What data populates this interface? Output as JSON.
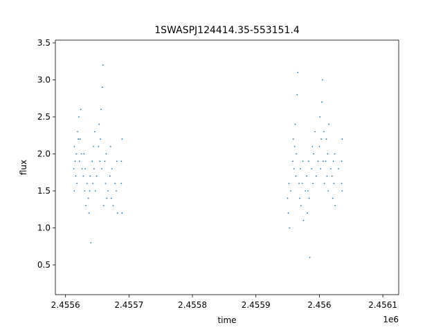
{
  "chart_data": {
    "type": "scatter",
    "title": "1SWASPJ124414.35-553151.4",
    "x_label": "time",
    "y_label": "flux",
    "x_offset_label": "1e6",
    "color": "#1f77b4",
    "xlim": [
      2.455584,
      2.456125
    ],
    "ylim": [
      0.098,
      3.537
    ],
    "xticks": [
      2.4556,
      2.4557,
      2.4558,
      2.4559,
      2.456,
      2.4561
    ],
    "yticks": [
      0.5,
      {
        "value": 1,
        "label": "1.0"
      },
      1.5,
      {
        "value": 2,
        "label": "2.0"
      },
      2.5,
      {
        "value": 3,
        "label": "3.0"
      },
      3.5
    ],
    "x": [
      2.455613,
      2.455614,
      2.455614,
      2.455615,
      2.455616,
      2.455617,
      2.455618,
      2.455619,
      2.45562,
      2.455621,
      2.455622,
      2.455623,
      2.455624,
      2.455625,
      2.455626,
      2.455628,
      2.455629,
      2.45563,
      2.455631,
      2.455632,
      2.455634,
      2.455636,
      2.455637,
      2.455638,
      2.455639,
      2.45564,
      2.455642,
      2.455643,
      2.455644,
      2.455645,
      2.455646,
      2.455647,
      2.455649,
      2.455652,
      2.455653,
      2.455654,
      2.455655,
      2.455656,
      2.455657,
      2.455658,
      2.455659,
      2.45566,
      2.455662,
      2.455663,
      2.455664,
      2.455665,
      2.455667,
      2.45567,
      2.455671,
      2.455672,
      2.455673,
      2.455675,
      2.455678,
      2.45568,
      2.455681,
      2.455682,
      2.455688,
      2.455688,
      2.455689,
      2.455689,
      2.45595,
      2.455951,
      2.455952,
      2.455953,
      2.455955,
      2.455958,
      2.455959,
      2.45596,
      2.455961,
      2.455962,
      2.455963,
      2.455964,
      2.455965,
      2.455966,
      2.455968,
      2.455969,
      2.45597,
      2.455971,
      2.455973,
      2.455974,
      2.455975,
      2.455978,
      2.45598,
      2.455981,
      2.455982,
      2.455983,
      2.455984,
      2.455985,
      2.455988,
      2.455989,
      2.45599,
      2.455991,
      2.455993,
      2.455995,
      2.455998,
      2.456,
      2.456001,
      2.456002,
      2.456003,
      2.456004,
      2.456005,
      2.456006,
      2.456007,
      2.456008,
      2.45601,
      2.456011,
      2.456012,
      2.456013,
      2.456014,
      2.456015,
      2.456018,
      2.45602,
      2.456021,
      2.456022,
      2.456023,
      2.456024,
      2.456025,
      2.45603,
      2.456035,
      2.456035,
      2.456036,
      2.456036
    ],
    "values": [
      1.8,
      2.1,
      1.5,
      1.9,
      1.7,
      2.0,
      1.6,
      2.3,
      2.2,
      2.5,
      1.9,
      2.2,
      2.6,
      2.0,
      1.8,
      1.7,
      2.0,
      1.5,
      1.8,
      1.3,
      1.6,
      1.4,
      1.2,
      1.5,
      1.7,
      0.8,
      1.9,
      1.6,
      2.1,
      1.8,
      2.3,
      1.5,
      1.7,
      2.1,
      2.4,
      1.9,
      2.2,
      2.6,
      1.8,
      2.9,
      3.2,
      1.3,
      1.9,
      1.6,
      2.0,
      1.4,
      1.5,
      1.7,
      2.1,
      1.4,
      1.8,
      1.3,
      1.6,
      1.5,
      1.9,
      1.2,
      1.6,
      1.9,
      1.2,
      2.2,
      1.4,
      1.2,
      1.6,
      1.0,
      1.5,
      1.9,
      2.2,
      1.8,
      2.1,
      2.4,
      1.7,
      2.0,
      2.8,
      3.1,
      1.6,
      1.4,
      1.8,
      1.3,
      1.6,
      1.9,
      1.1,
      1.5,
      1.7,
      1.2,
      1.5,
      1.9,
      1.4,
      0.6,
      1.8,
      2.1,
      1.6,
      2.0,
      2.3,
      1.7,
      1.9,
      2.1,
      2.5,
      1.8,
      2.2,
      2.7,
      3.0,
      1.9,
      2.3,
      1.6,
      1.9,
      2.2,
      1.7,
      2.0,
      1.5,
      2.4,
      1.8,
      1.7,
      1.4,
      1.9,
      1.6,
      2.0,
      1.3,
      1.8,
      1.9,
      1.6,
      2.2,
      1.5
    ]
  }
}
